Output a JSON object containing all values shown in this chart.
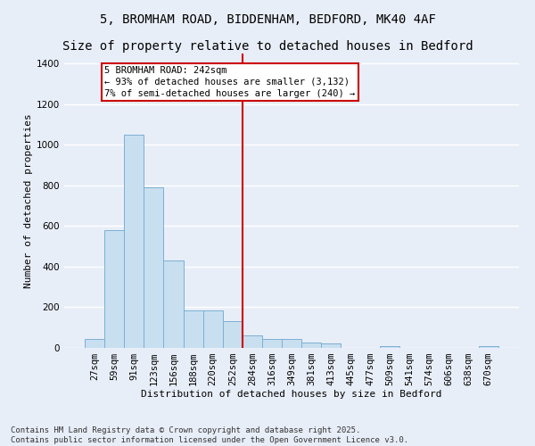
{
  "title_line1": "5, BROMHAM ROAD, BIDDENHAM, BEDFORD, MK40 4AF",
  "title_line2": "Size of property relative to detached houses in Bedford",
  "xlabel": "Distribution of detached houses by size in Bedford",
  "ylabel": "Number of detached properties",
  "categories": [
    "27sqm",
    "59sqm",
    "91sqm",
    "123sqm",
    "156sqm",
    "188sqm",
    "220sqm",
    "252sqm",
    "284sqm",
    "316sqm",
    "349sqm",
    "381sqm",
    "413sqm",
    "445sqm",
    "477sqm",
    "509sqm",
    "541sqm",
    "574sqm",
    "606sqm",
    "638sqm",
    "670sqm"
  ],
  "values": [
    45,
    580,
    1050,
    790,
    430,
    185,
    185,
    130,
    60,
    45,
    45,
    25,
    20,
    0,
    0,
    10,
    0,
    0,
    0,
    0,
    10
  ],
  "bar_color": "#c8dff0",
  "bar_edge_color": "#7bafd4",
  "bar_alpha": 1.0,
  "vline_x": 7.5,
  "vline_color": "#cc0000",
  "annotation_text": "5 BROMHAM ROAD: 242sqm\n← 93% of detached houses are smaller (3,132)\n7% of semi-detached houses are larger (240) →",
  "annotation_box_color": "#cc0000",
  "ylim": [
    0,
    1450
  ],
  "yticks": [
    0,
    200,
    400,
    600,
    800,
    1000,
    1200,
    1400
  ],
  "bg_color": "#e8eef8",
  "plot_bg_color": "#e8eef8",
  "grid_color": "#ffffff",
  "footnote": "Contains HM Land Registry data © Crown copyright and database right 2025.\nContains public sector information licensed under the Open Government Licence v3.0.",
  "title_fontsize": 10,
  "label_fontsize": 8,
  "tick_fontsize": 7.5,
  "footnote_fontsize": 6.5,
  "annot_fontsize": 7.5
}
